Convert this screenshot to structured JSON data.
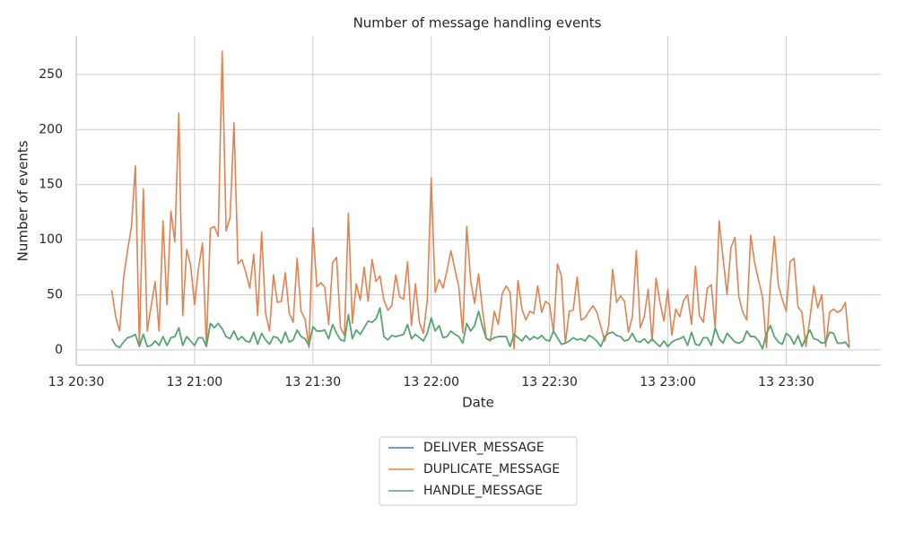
{
  "chart_data": {
    "type": "line",
    "title": "Number of message handling events",
    "x_label": "Date",
    "y_label": "Number of events",
    "x": [
      "13 20:39",
      "13 20:40",
      "13 20:41",
      "13 20:42",
      "13 20:43",
      "13 20:44",
      "13 20:45",
      "13 20:46",
      "13 20:47",
      "13 20:48",
      "13 20:49",
      "13 20:50",
      "13 20:51",
      "13 20:52",
      "13 20:53",
      "13 20:54",
      "13 20:55",
      "13 20:56",
      "13 20:57",
      "13 20:58",
      "13 20:59",
      "13 21:00",
      "13 21:01",
      "13 21:02",
      "13 21:03",
      "13 21:04",
      "13 21:05",
      "13 21:06",
      "13 21:07",
      "13 21:08",
      "13 21:09",
      "13 21:10",
      "13 21:11",
      "13 21:12",
      "13 21:13",
      "13 21:14",
      "13 21:15",
      "13 21:16",
      "13 21:17",
      "13 21:18",
      "13 21:19",
      "13 21:20",
      "13 21:21",
      "13 21:22",
      "13 21:23",
      "13 21:24",
      "13 21:25",
      "13 21:26",
      "13 21:27",
      "13 21:28",
      "13 21:29",
      "13 21:30",
      "13 21:31",
      "13 21:32",
      "13 21:33",
      "13 21:34",
      "13 21:35",
      "13 21:36",
      "13 21:37",
      "13 21:38",
      "13 21:39",
      "13 21:40",
      "13 21:41",
      "13 21:42",
      "13 21:43",
      "13 21:44",
      "13 21:45",
      "13 21:46",
      "13 21:47",
      "13 21:48",
      "13 21:49",
      "13 21:50",
      "13 21:51",
      "13 21:52",
      "13 21:53",
      "13 21:54",
      "13 21:55",
      "13 21:56",
      "13 21:57",
      "13 21:58",
      "13 21:59",
      "13 22:00",
      "13 22:01",
      "13 22:02",
      "13 22:03",
      "13 22:04",
      "13 22:05",
      "13 22:06",
      "13 22:07",
      "13 22:08",
      "13 22:09",
      "13 22:10",
      "13 22:11",
      "13 22:12",
      "13 22:13",
      "13 22:14",
      "13 22:15",
      "13 22:16",
      "13 22:17",
      "13 22:18",
      "13 22:19",
      "13 22:20",
      "13 22:21",
      "13 22:22",
      "13 22:23",
      "13 22:24",
      "13 22:25",
      "13 22:26",
      "13 22:27",
      "13 22:28",
      "13 22:29",
      "13 22:30",
      "13 22:31",
      "13 22:32",
      "13 22:33",
      "13 22:34",
      "13 22:35",
      "13 22:36",
      "13 22:37",
      "13 22:38",
      "13 22:39",
      "13 22:40",
      "13 22:41",
      "13 22:42",
      "13 22:43",
      "13 22:44",
      "13 22:45",
      "13 22:46",
      "13 22:47",
      "13 22:48",
      "13 22:49",
      "13 22:50",
      "13 22:51",
      "13 22:52",
      "13 22:53",
      "13 22:54",
      "13 22:55",
      "13 22:56",
      "13 22:57",
      "13 22:58",
      "13 22:59",
      "13 23:00",
      "13 23:01",
      "13 23:02",
      "13 23:03",
      "13 23:04",
      "13 23:05",
      "13 23:06",
      "13 23:07",
      "13 23:08",
      "13 23:09",
      "13 23:10",
      "13 23:11",
      "13 23:12",
      "13 23:13",
      "13 23:14",
      "13 23:15",
      "13 23:16",
      "13 23:17",
      "13 23:18",
      "13 23:19",
      "13 23:20",
      "13 23:21",
      "13 23:22",
      "13 23:23",
      "13 23:24",
      "13 23:25",
      "13 23:26",
      "13 23:27",
      "13 23:28",
      "13 23:29",
      "13 23:30",
      "13 23:31",
      "13 23:32",
      "13 23:33",
      "13 23:34",
      "13 23:35",
      "13 23:36",
      "13 23:37",
      "13 23:38",
      "13 23:39",
      "13 23:40",
      "13 23:41",
      "13 23:42",
      "13 23:43",
      "13 23:44",
      "13 23:45",
      "13 23:46"
    ],
    "series": [
      {
        "name": "DELIVER_MESSAGE",
        "color": "#4c72b0",
        "values": [
          10,
          4,
          2,
          7,
          11,
          12,
          14,
          3,
          14,
          3,
          4,
          8,
          4,
          12,
          4,
          11,
          12,
          20,
          4,
          12,
          8,
          4,
          11,
          11,
          3,
          24,
          20,
          24,
          19,
          12,
          10,
          17,
          9,
          12,
          8,
          7,
          16,
          5,
          15,
          9,
          5,
          12,
          11,
          6,
          16,
          7,
          9,
          18,
          12,
          10,
          4,
          21,
          17,
          17,
          18,
          10,
          23,
          15,
          9,
          8,
          32,
          10,
          18,
          14,
          20,
          26,
          25,
          28,
          38,
          12,
          9,
          13,
          12,
          13,
          14,
          23,
          10,
          14,
          11,
          8,
          15,
          29,
          17,
          22,
          11,
          12,
          17,
          14,
          12,
          6,
          24,
          17,
          22,
          35,
          21,
          10,
          9,
          11,
          12,
          12,
          12,
          3,
          14,
          11,
          8,
          13,
          9,
          12,
          10,
          13,
          9,
          8,
          17,
          11,
          5,
          6,
          8,
          11,
          9,
          10,
          8,
          13,
          11,
          8,
          3,
          12,
          15,
          16,
          13,
          12,
          8,
          9,
          15,
          8,
          7,
          10,
          6,
          10,
          6,
          3,
          8,
          3,
          7,
          9,
          10,
          12,
          4,
          16,
          5,
          4,
          11,
          11,
          4,
          20,
          10,
          6,
          15,
          11,
          7,
          6,
          8,
          17,
          12,
          12,
          8,
          1,
          15,
          22,
          12,
          7,
          5,
          15,
          12,
          5,
          13,
          3,
          11,
          18,
          10,
          9,
          6,
          7,
          16,
          15,
          6,
          6,
          7,
          2
        ]
      },
      {
        "name": "DUPLICATE_MESSAGE",
        "color": "#dd8452",
        "values": [
          54,
          30,
          17,
          65,
          90,
          112,
          167,
          3,
          146,
          17,
          40,
          62,
          17,
          117,
          41,
          126,
          98,
          215,
          31,
          91,
          77,
          41,
          74,
          97,
          3,
          110,
          112,
          103,
          271,
          108,
          120,
          206,
          78,
          82,
          70,
          56,
          87,
          31,
          107,
          33,
          17,
          68,
          43,
          44,
          70,
          33,
          25,
          83,
          35,
          28,
          2,
          111,
          57,
          61,
          57,
          23,
          79,
          84,
          20,
          13,
          124,
          24,
          60,
          45,
          75,
          44,
          82,
          62,
          67,
          45,
          36,
          40,
          68,
          48,
          46,
          80,
          22,
          60,
          25,
          15,
          45,
          156,
          52,
          64,
          56,
          72,
          90,
          73,
          57,
          15,
          112,
          63,
          42,
          69,
          36,
          10,
          8,
          35,
          23,
          51,
          58,
          52,
          1,
          63,
          37,
          27,
          35,
          33,
          58,
          34,
          44,
          41,
          16,
          78,
          67,
          6,
          35,
          36,
          66,
          27,
          29,
          35,
          40,
          34,
          21,
          8,
          22,
          73,
          43,
          49,
          44,
          16,
          30,
          90,
          20,
          30,
          55,
          8,
          65,
          43,
          26,
          55,
          13,
          37,
          30,
          45,
          50,
          23,
          76,
          31,
          25,
          56,
          59,
          20,
          117,
          83,
          50,
          93,
          102,
          48,
          34,
          27,
          104,
          79,
          63,
          48,
          2,
          60,
          103,
          59,
          46,
          35,
          80,
          83,
          39,
          34,
          3,
          28,
          58,
          38,
          50,
          3,
          34,
          37,
          34,
          36,
          43,
          3
        ]
      },
      {
        "name": "HANDLE_MESSAGE",
        "color": "#55a868",
        "values": [
          10,
          4,
          2,
          7,
          11,
          12,
          14,
          3,
          14,
          3,
          4,
          8,
          4,
          12,
          4,
          11,
          12,
          20,
          4,
          12,
          8,
          4,
          11,
          11,
          3,
          24,
          20,
          24,
          19,
          12,
          10,
          17,
          9,
          12,
          8,
          7,
          16,
          5,
          15,
          9,
          5,
          12,
          11,
          6,
          16,
          7,
          9,
          18,
          12,
          10,
          4,
          21,
          17,
          17,
          18,
          10,
          23,
          15,
          9,
          8,
          32,
          10,
          18,
          14,
          20,
          26,
          25,
          28,
          38,
          12,
          9,
          13,
          12,
          13,
          14,
          23,
          10,
          14,
          11,
          8,
          15,
          29,
          17,
          22,
          11,
          12,
          17,
          14,
          12,
          6,
          24,
          17,
          22,
          35,
          21,
          10,
          9,
          11,
          12,
          12,
          12,
          3,
          14,
          11,
          8,
          13,
          9,
          12,
          10,
          13,
          9,
          8,
          17,
          11,
          5,
          6,
          8,
          11,
          9,
          10,
          8,
          13,
          11,
          8,
          3,
          12,
          15,
          16,
          13,
          12,
          8,
          9,
          15,
          8,
          7,
          10,
          6,
          10,
          6,
          3,
          8,
          3,
          7,
          9,
          10,
          12,
          4,
          16,
          5,
          4,
          11,
          11,
          4,
          20,
          10,
          6,
          15,
          11,
          7,
          6,
          8,
          17,
          12,
          12,
          8,
          1,
          15,
          22,
          12,
          7,
          5,
          15,
          12,
          5,
          13,
          3,
          11,
          18,
          10,
          9,
          6,
          7,
          16,
          15,
          6,
          6,
          7,
          2
        ]
      }
    ],
    "xlim": [
      "13 20:30",
      "13 23:54"
    ],
    "xticks": [
      "13 20:30",
      "13 21:00",
      "13 21:30",
      "13 22:00",
      "13 22:30",
      "13 23:00",
      "13 23:30"
    ],
    "ylim": [
      -14,
      285
    ],
    "yticks": [
      0,
      50,
      100,
      150,
      200,
      250
    ],
    "grid": true,
    "legend": "bottom"
  }
}
